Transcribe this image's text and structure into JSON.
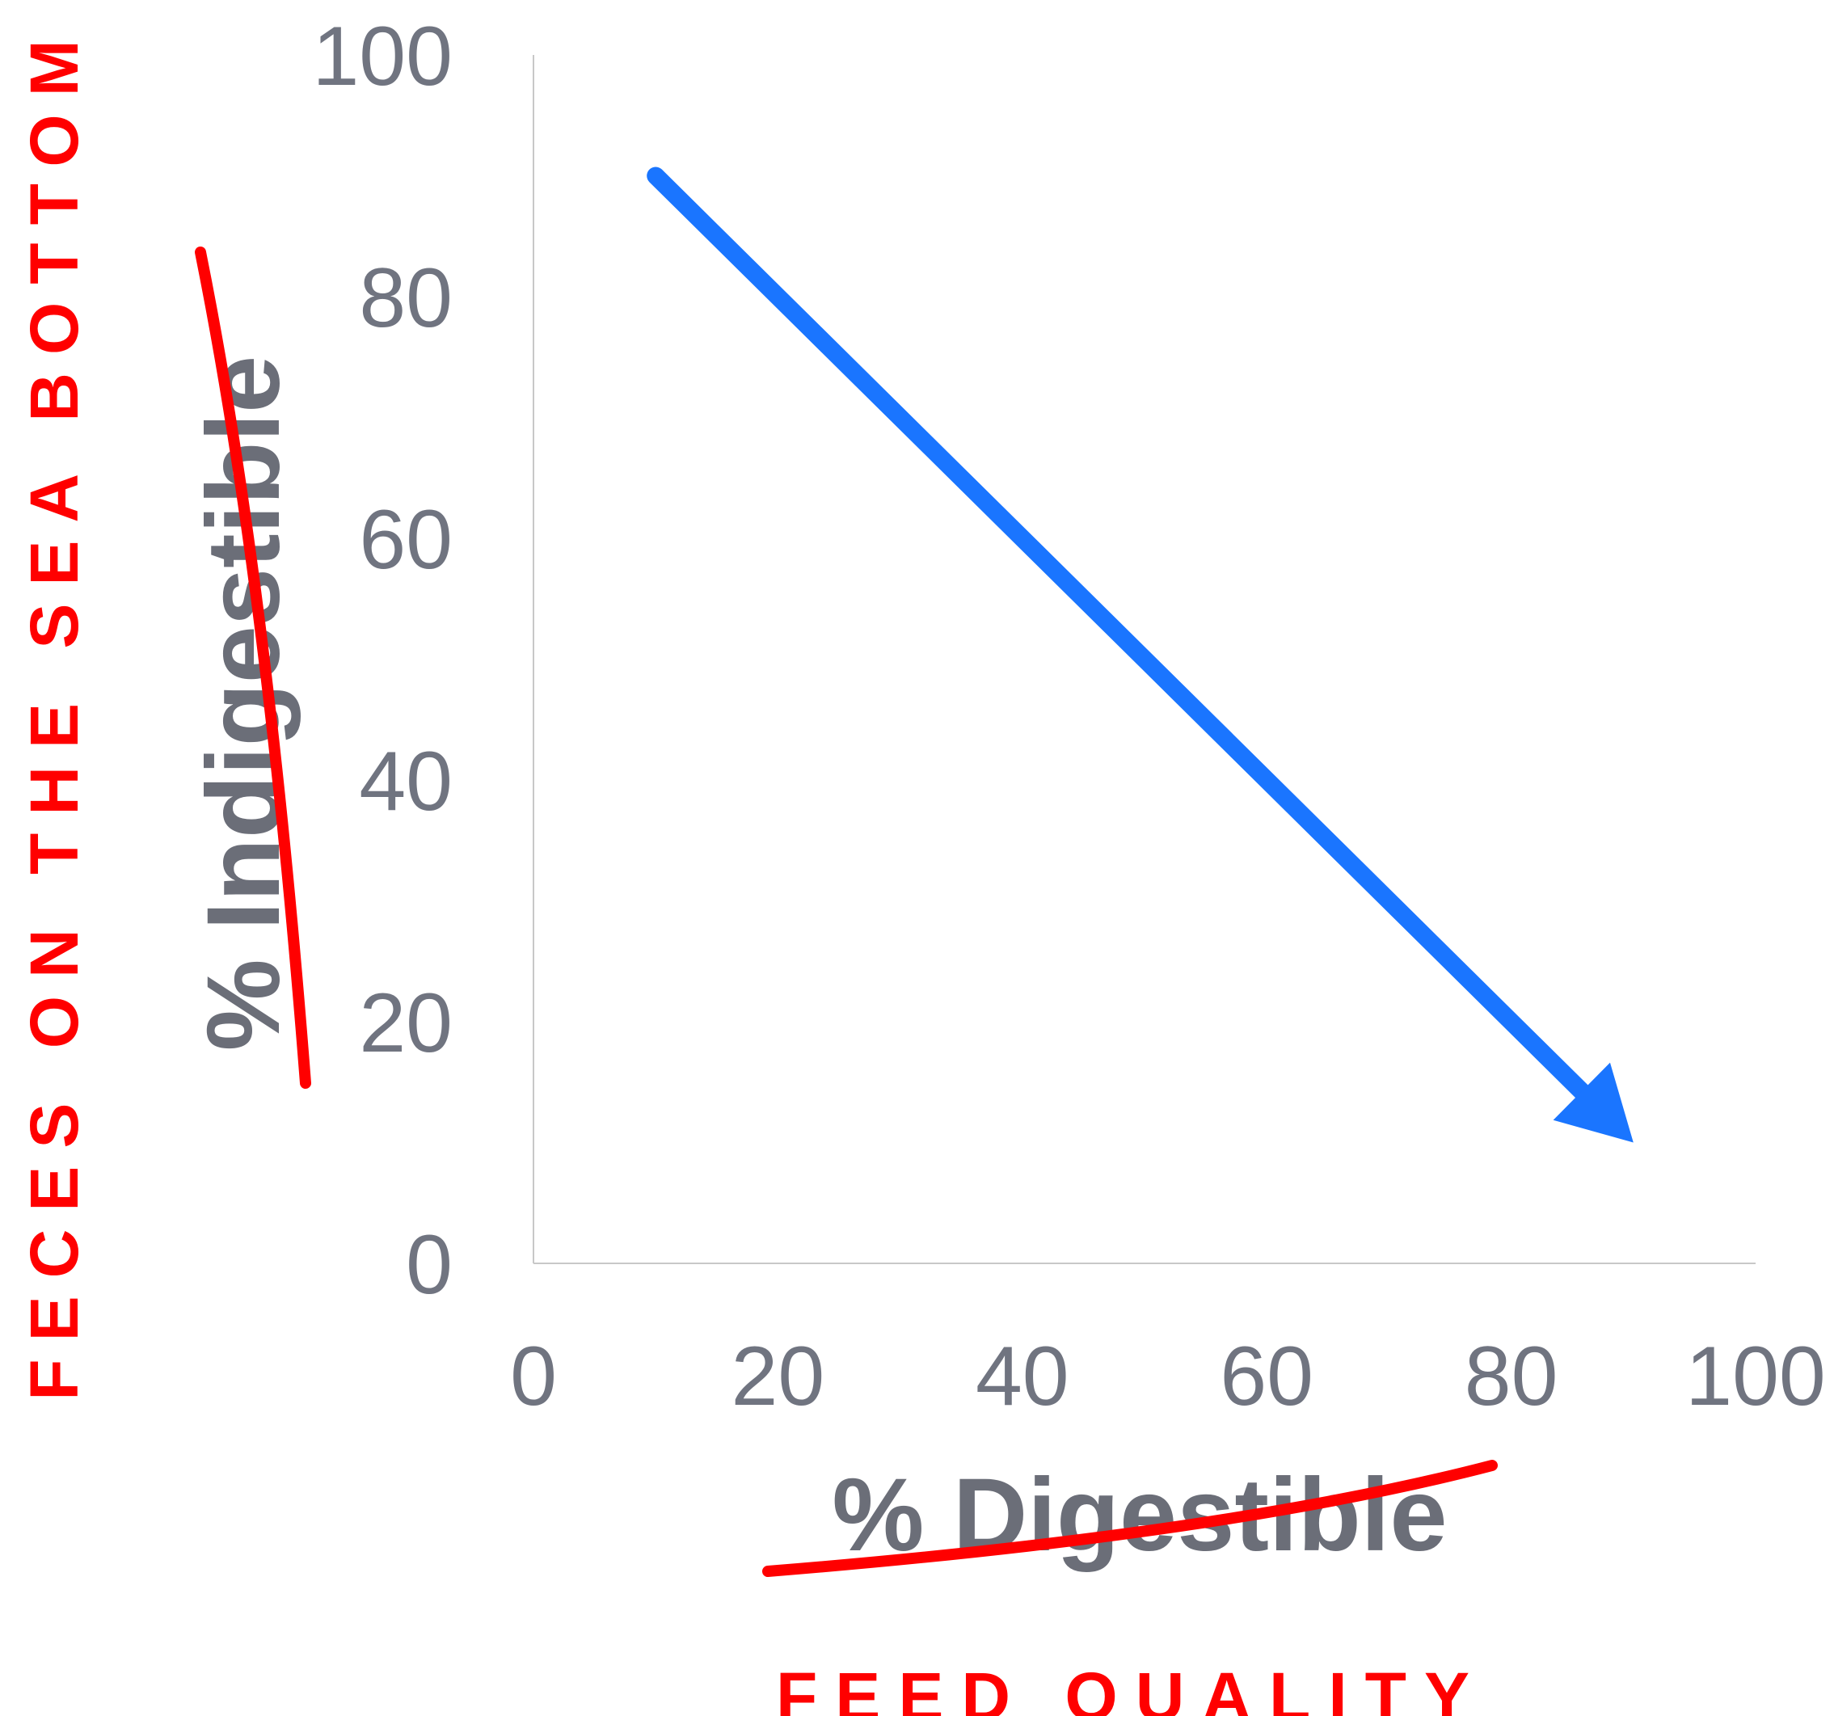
{
  "chart_data": {
    "type": "line",
    "x_ticks": [
      "0",
      "20",
      "40",
      "60",
      "80",
      "100"
    ],
    "y_ticks": [
      "0",
      "20",
      "40",
      "60",
      "80",
      "100"
    ],
    "xlim": [
      0,
      100
    ],
    "ylim": [
      0,
      100
    ],
    "xlabel": "% Digestible",
    "ylabel": "% Indigestible",
    "xlabel_struck_through": true,
    "ylabel_struck_through": true,
    "grid": false,
    "series": [
      {
        "color": "#1a75ff",
        "style": "arrow",
        "x": [
          10,
          90
        ],
        "y": [
          90,
          10
        ]
      }
    ],
    "annotations": {
      "x_replacement": "FEED QUALITY",
      "y_replacement": "FECES ON THE SEA BOTTOM",
      "color": "#ff0000"
    }
  }
}
